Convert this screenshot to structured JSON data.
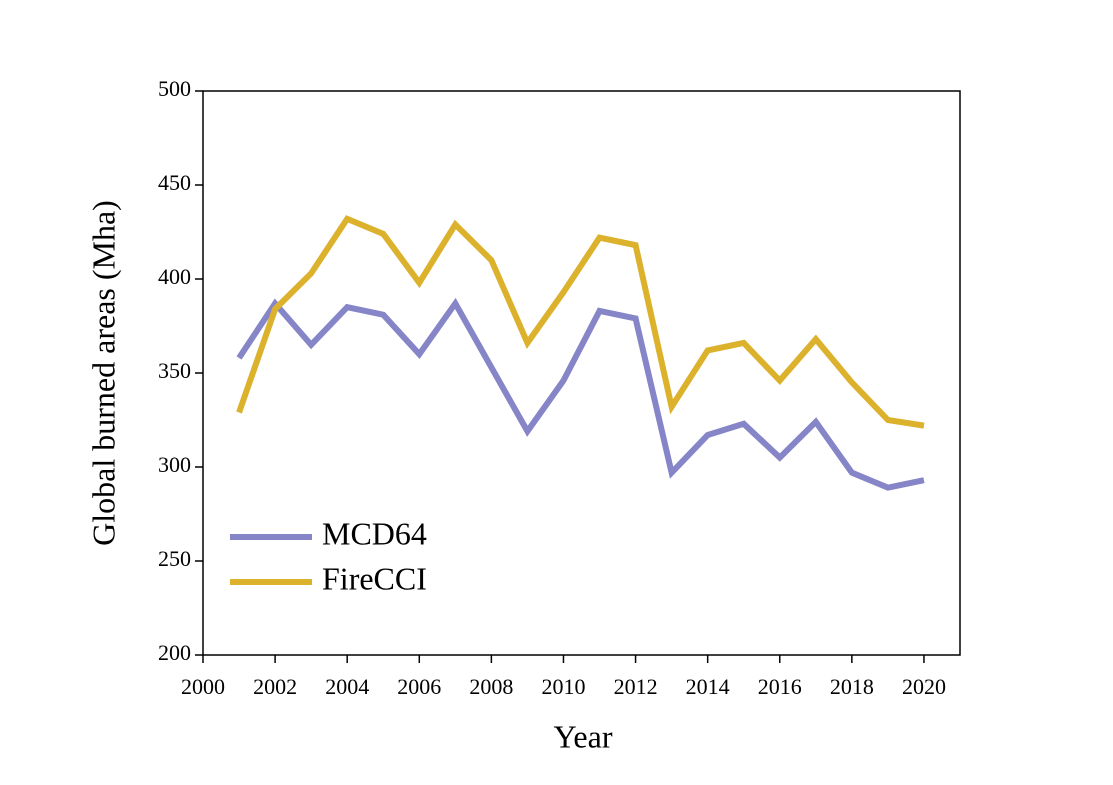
{
  "chart_data": {
    "type": "line",
    "x_label": "Year",
    "y_label": "Global burned areas (Mha)",
    "x": [
      2001,
      2002,
      2003,
      2004,
      2005,
      2006,
      2007,
      2008,
      2009,
      2010,
      2011,
      2012,
      2013,
      2014,
      2015,
      2016,
      2017,
      2018,
      2019,
      2020
    ],
    "series": [
      {
        "name": "MCD64",
        "color": "#8585c8",
        "values": [
          358,
          387,
          365,
          385,
          381,
          360,
          387,
          353,
          319,
          346,
          383,
          379,
          297,
          317,
          323,
          305,
          324,
          297,
          289,
          293
        ]
      },
      {
        "name": "FireCCI",
        "color": "#dcb12c",
        "values": [
          329,
          384,
          403,
          432,
          424,
          398,
          429,
          410,
          366,
          393,
          422,
          418,
          332,
          362,
          366,
          346,
          368,
          345,
          325,
          322
        ]
      }
    ],
    "xlim": [
      2000,
      2021
    ],
    "xticks": [
      2000,
      2002,
      2004,
      2006,
      2008,
      2010,
      2012,
      2014,
      2016,
      2018,
      2020
    ],
    "ylim": [
      200,
      500
    ],
    "yticks": [
      200,
      250,
      300,
      350,
      400,
      450,
      500
    ],
    "legend": "lower left"
  }
}
